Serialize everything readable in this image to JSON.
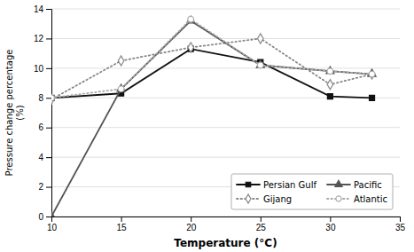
{
  "chart_data": {
    "type": "line",
    "xlabel": "Temperature (°C)",
    "ylabel": "Pressure change percentage\n(%)",
    "x": [
      10,
      15,
      20,
      25,
      30,
      33
    ],
    "xlim": [
      10,
      35
    ],
    "ylim": [
      0,
      14
    ],
    "xticks": [
      10,
      15,
      20,
      25,
      30,
      35
    ],
    "yticks": [
      0,
      2,
      4,
      6,
      8,
      10,
      12,
      14
    ],
    "grid": true,
    "legend": "lower right",
    "series": [
      {
        "name": "Persian Gulf",
        "color": "#111111",
        "line_style": "solid",
        "marker": "square",
        "values": [
          8.0,
          8.3,
          11.3,
          10.4,
          8.1,
          8.0
        ]
      },
      {
        "name": "Gijang",
        "color": "#888888",
        "line_style": "dotted",
        "marker": "diamond-open",
        "values": [
          7.9,
          10.5,
          11.4,
          12.0,
          8.9,
          9.6
        ]
      },
      {
        "name": "Pacific",
        "color": "#555555",
        "line_style": "solid",
        "marker": "triangle",
        "values": [
          0.0,
          8.6,
          13.2,
          10.2,
          9.8,
          9.6
        ]
      },
      {
        "name": "Atlantic",
        "color": "#aaaaaa",
        "line_style": "dotted",
        "marker": "circle-open",
        "values": [
          8.0,
          8.6,
          13.3,
          10.2,
          9.8,
          9.6
        ]
      }
    ]
  }
}
